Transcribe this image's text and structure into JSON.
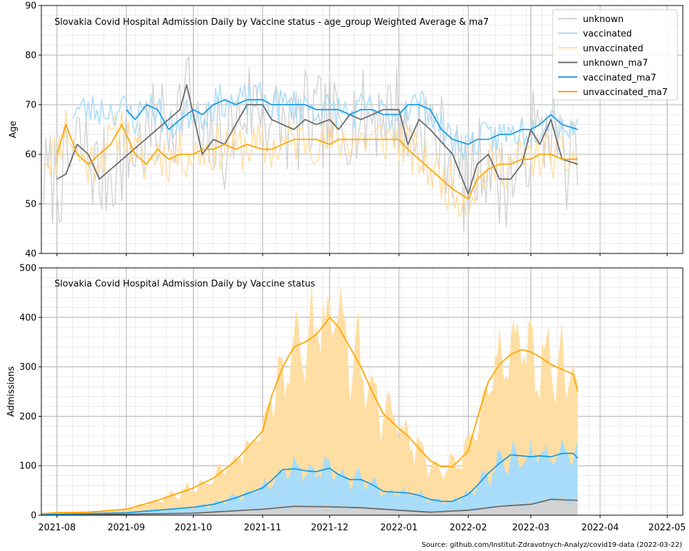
{
  "colors": {
    "unknown": "#d3d3d3",
    "vaccinated": "#a8dcf8",
    "unvaccinated": "#ffdea3",
    "unknown_ma7": "#696969",
    "vaccinated_ma7": "#1a9ae0",
    "unvaccinated_ma7": "#ffa500",
    "grid_major": "#b0b0b0",
    "grid_minor": "#e6e6e6"
  },
  "source": "Source: github.com/Institut-Zdravotnych-Analyz/covid19-data (2022-03-22)",
  "chart_data": [
    {
      "type": "line",
      "title": "Slovakia Covid Hospital Admission Daily by Vaccine status - age_group Weighted Average & ma7",
      "ylabel": "Age",
      "xlabel": "",
      "ylim": [
        40,
        90
      ],
      "yticks": [
        "40",
        "50",
        "60",
        "70",
        "80",
        "90"
      ],
      "xticks": [
        "2021-08",
        "2021-09",
        "2021-10",
        "2021-11",
        "2021-12",
        "2022-01",
        "2022-02",
        "2022-03",
        "2022-04",
        "2022-05"
      ],
      "xlim": [
        "2021-07-25",
        "2022-05-08"
      ],
      "grid": true,
      "legend": {
        "position": "top-right",
        "entries": [
          "unknown",
          "vaccinated",
          "unvaccinated",
          "unknown_ma7",
          "vaccinated_ma7",
          "unvaccinated_ma7"
        ]
      },
      "series": [
        {
          "name": "unvaccinated_ma7",
          "x": [
            "2021-08-01",
            "2021-08-05",
            "2021-08-10",
            "2021-08-15",
            "2021-08-20",
            "2021-08-25",
            "2021-08-30",
            "2021-09-05",
            "2021-09-10",
            "2021-09-15",
            "2021-09-20",
            "2021-09-25",
            "2021-10-01",
            "2021-10-05",
            "2021-10-10",
            "2021-10-15",
            "2021-10-20",
            "2021-10-25",
            "2021-11-01",
            "2021-11-05",
            "2021-11-10",
            "2021-11-15",
            "2021-11-20",
            "2021-11-25",
            "2021-12-01",
            "2021-12-05",
            "2021-12-10",
            "2021-12-15",
            "2021-12-20",
            "2021-12-25",
            "2022-01-01",
            "2022-01-05",
            "2022-01-10",
            "2022-01-15",
            "2022-01-20",
            "2022-01-25",
            "2022-02-01",
            "2022-02-05",
            "2022-02-10",
            "2022-02-15",
            "2022-02-20",
            "2022-02-25",
            "2022-03-01",
            "2022-03-05",
            "2022-03-10",
            "2022-03-15",
            "2022-03-22"
          ],
          "values": [
            60,
            66,
            60,
            58,
            60,
            62,
            66,
            60,
            58,
            61,
            59,
            60,
            60,
            61,
            61,
            62,
            61,
            62,
            61,
            61,
            62,
            63,
            63,
            63,
            62,
            63,
            63,
            63,
            63,
            63,
            63,
            61,
            59,
            57,
            55,
            53,
            51,
            55,
            57,
            58,
            58,
            59,
            59,
            60,
            60,
            59,
            59
          ]
        },
        {
          "name": "vaccinated_ma7",
          "x": [
            "2021-09-01",
            "2021-09-05",
            "2021-09-10",
            "2021-09-15",
            "2021-09-20",
            "2021-09-25",
            "2021-10-01",
            "2021-10-05",
            "2021-10-10",
            "2021-10-15",
            "2021-10-20",
            "2021-10-25",
            "2021-11-01",
            "2021-11-05",
            "2021-11-10",
            "2021-11-15",
            "2021-11-20",
            "2021-11-25",
            "2021-12-01",
            "2021-12-05",
            "2021-12-10",
            "2021-12-15",
            "2021-12-20",
            "2021-12-25",
            "2022-01-01",
            "2022-01-05",
            "2022-01-10",
            "2022-01-15",
            "2022-01-20",
            "2022-01-25",
            "2022-02-01",
            "2022-02-05",
            "2022-02-10",
            "2022-02-15",
            "2022-02-20",
            "2022-02-25",
            "2022-03-01",
            "2022-03-05",
            "2022-03-10",
            "2022-03-15",
            "2022-03-22"
          ],
          "values": [
            69,
            67,
            70,
            69,
            65,
            67,
            69,
            68,
            70,
            71,
            70,
            71,
            71,
            70,
            70,
            70,
            70,
            69,
            69,
            69,
            68,
            69,
            69,
            68,
            68,
            70,
            70,
            69,
            65,
            63,
            62,
            63,
            63,
            64,
            64,
            65,
            65,
            66,
            68,
            66,
            65
          ]
        },
        {
          "name": "unknown_ma7",
          "x": [
            "2021-08-01",
            "2021-08-05",
            "2021-08-10",
            "2021-08-15",
            "2021-08-20",
            "2021-09-25",
            "2021-09-28",
            "2021-10-05",
            "2021-10-10",
            "2021-10-15",
            "2021-10-20",
            "2021-10-25",
            "2021-11-01",
            "2021-11-05",
            "2021-11-10",
            "2021-11-15",
            "2021-11-20",
            "2021-11-25",
            "2021-12-01",
            "2021-12-05",
            "2021-12-10",
            "2021-12-15",
            "2021-12-20",
            "2021-12-25",
            "2022-01-01",
            "2022-01-05",
            "2022-01-10",
            "2022-01-15",
            "2022-01-25",
            "2022-02-01",
            "2022-02-05",
            "2022-02-10",
            "2022-02-15",
            "2022-02-20",
            "2022-02-25",
            "2022-03-01",
            "2022-03-05",
            "2022-03-10",
            "2022-03-15",
            "2022-03-22"
          ],
          "values": [
            55,
            56,
            62,
            60,
            55,
            69,
            74,
            60,
            63,
            62,
            66,
            70,
            70,
            67,
            66,
            65,
            67,
            66,
            67,
            65,
            68,
            67,
            68,
            69,
            69,
            62,
            67,
            65,
            60,
            52,
            58,
            60,
            55,
            55,
            58,
            65,
            62,
            67,
            59,
            58
          ]
        }
      ]
    },
    {
      "type": "area",
      "title": "Slovakia Covid Hospital Admission Daily by Vaccine status",
      "ylabel": "Admissions",
      "xlabel": "",
      "ylim": [
        0,
        500
      ],
      "yticks": [
        "0",
        "100",
        "200",
        "300",
        "400",
        "500"
      ],
      "xticks": [
        "2021-08",
        "2021-09",
        "2021-10",
        "2021-11",
        "2021-12",
        "2022-01",
        "2022-02",
        "2022-03",
        "2022-04",
        "2022-05"
      ],
      "xlim": [
        "2021-07-25",
        "2022-05-08"
      ],
      "stacked": true,
      "grid": true,
      "series": [
        {
          "name": "unvaccinated_ma7",
          "x": [
            "2021-07-25",
            "2021-08-01",
            "2021-08-15",
            "2021-09-01",
            "2021-09-15",
            "2021-10-01",
            "2021-10-10",
            "2021-10-20",
            "2021-11-01",
            "2021-11-05",
            "2021-11-10",
            "2021-11-15",
            "2021-11-20",
            "2021-11-25",
            "2021-12-01",
            "2021-12-05",
            "2021-12-10",
            "2021-12-15",
            "2021-12-20",
            "2021-12-25",
            "2022-01-01",
            "2022-01-05",
            "2022-01-10",
            "2022-01-15",
            "2022-01-20",
            "2022-01-25",
            "2022-02-01",
            "2022-02-05",
            "2022-02-10",
            "2022-02-15",
            "2022-02-20",
            "2022-02-25",
            "2022-03-01",
            "2022-03-05",
            "2022-03-10",
            "2022-03-15",
            "2022-03-20",
            "2022-03-22"
          ],
          "values": [
            3,
            5,
            6,
            12,
            30,
            55,
            75,
            110,
            170,
            240,
            300,
            340,
            350,
            365,
            400,
            380,
            340,
            300,
            250,
            205,
            175,
            160,
            135,
            110,
            98,
            98,
            130,
            195,
            270,
            305,
            325,
            335,
            330,
            320,
            305,
            295,
            285,
            250
          ]
        },
        {
          "name": "vaccinated_ma7",
          "x": [
            "2021-07-25",
            "2021-08-01",
            "2021-08-15",
            "2021-09-01",
            "2021-09-15",
            "2021-10-01",
            "2021-10-10",
            "2021-10-20",
            "2021-11-01",
            "2021-11-05",
            "2021-11-10",
            "2021-11-15",
            "2021-11-20",
            "2021-11-25",
            "2021-12-01",
            "2021-12-05",
            "2021-12-10",
            "2021-12-15",
            "2021-12-20",
            "2021-12-25",
            "2022-01-01",
            "2022-01-05",
            "2022-01-10",
            "2022-01-15",
            "2022-01-20",
            "2022-01-25",
            "2022-02-01",
            "2022-02-05",
            "2022-02-10",
            "2022-02-15",
            "2022-02-20",
            "2022-02-25",
            "2022-03-01",
            "2022-03-05",
            "2022-03-10",
            "2022-03-15",
            "2022-03-20",
            "2022-03-22"
          ],
          "values": [
            1,
            2,
            3,
            5,
            10,
            16,
            22,
            35,
            55,
            70,
            92,
            94,
            90,
            88,
            95,
            82,
            72,
            72,
            62,
            48,
            46,
            45,
            40,
            32,
            28,
            28,
            42,
            60,
            85,
            105,
            122,
            120,
            118,
            120,
            118,
            125,
            125,
            115
          ]
        },
        {
          "name": "unknown_ma7",
          "x": [
            "2021-07-25",
            "2021-08-01",
            "2021-09-01",
            "2021-10-01",
            "2021-11-01",
            "2021-11-15",
            "2021-12-01",
            "2021-12-15",
            "2022-01-01",
            "2022-01-15",
            "2022-02-01",
            "2022-02-15",
            "2022-03-01",
            "2022-03-10",
            "2022-03-22"
          ],
          "values": [
            0,
            1,
            2,
            4,
            12,
            18,
            17,
            15,
            10,
            6,
            10,
            18,
            22,
            32,
            30
          ]
        }
      ]
    }
  ]
}
